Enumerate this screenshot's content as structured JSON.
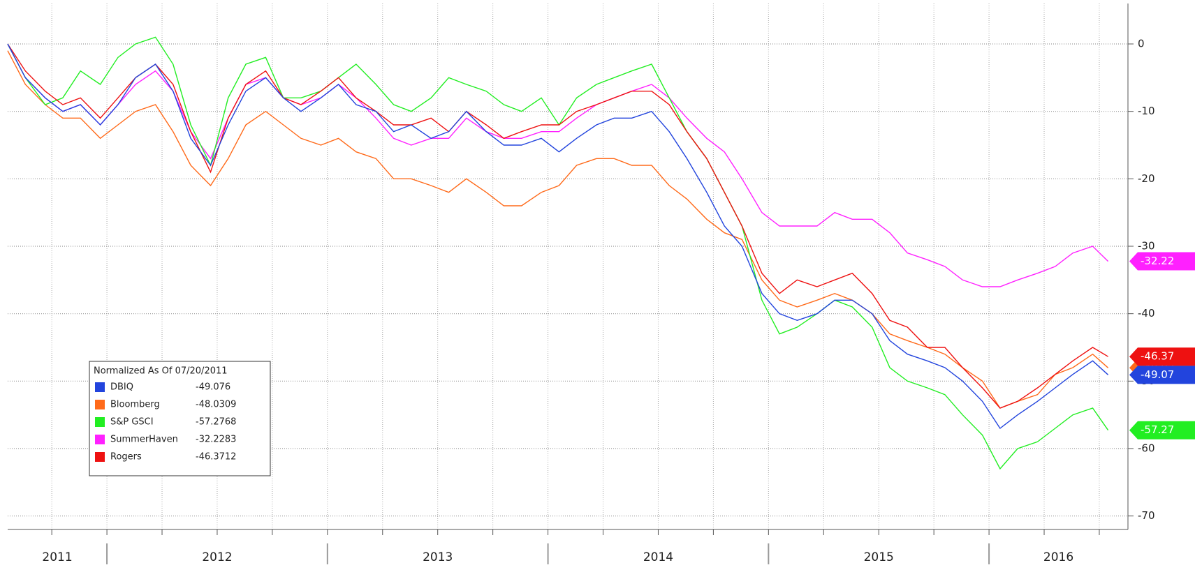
{
  "chart_data": {
    "type": "line",
    "legend_title": "Normalized As Of 07/20/2011",
    "x": [
      2011.55,
      2011.63,
      2011.72,
      2011.8,
      2011.88,
      2011.97,
      2012.05,
      2012.13,
      2012.22,
      2012.3,
      2012.38,
      2012.47,
      2012.55,
      2012.63,
      2012.72,
      2012.8,
      2012.88,
      2012.97,
      2013.05,
      2013.13,
      2013.22,
      2013.3,
      2013.38,
      2013.47,
      2013.55,
      2013.63,
      2013.72,
      2013.8,
      2013.88,
      2013.97,
      2014.05,
      2014.13,
      2014.22,
      2014.3,
      2014.38,
      2014.47,
      2014.55,
      2014.63,
      2014.72,
      2014.8,
      2014.88,
      2014.97,
      2015.05,
      2015.13,
      2015.22,
      2015.3,
      2015.38,
      2015.47,
      2015.55,
      2015.63,
      2015.72,
      2015.8,
      2015.88,
      2015.97,
      2016.05,
      2016.13,
      2016.22,
      2016.3,
      2016.38,
      2016.47,
      2016.54
    ],
    "xlim": [
      2011.55,
      2016.63
    ],
    "xticks": [
      2011.75,
      2012,
      2012.25,
      2012.5,
      2012.75,
      2013,
      2013.25,
      2013.5,
      2013.75,
      2014,
      2014.25,
      2014.5,
      2014.75,
      2015,
      2015.25,
      2015.5,
      2015.75,
      2016,
      2016.25,
      2016.5
    ],
    "year_starts": [
      2011.55,
      2012,
      2013,
      2014,
      2015,
      2016
    ],
    "year_labels": [
      "2011",
      "2012",
      "2013",
      "2014",
      "2015",
      "2016"
    ],
    "ylim": [
      -72,
      6
    ],
    "yticks": [
      0,
      -10,
      -20,
      -30,
      -40,
      -50,
      -60,
      -70
    ],
    "grid": true,
    "series": [
      {
        "name": "Bloomberg",
        "color": "#ff6a1a",
        "legend_value": -48.0309,
        "end_label": "-48.03",
        "values": [
          -1,
          -6,
          -9,
          -11,
          -11,
          -14,
          -12,
          -10,
          -9,
          -13,
          -18,
          -21,
          -17,
          -12,
          -10,
          -12,
          -14,
          -15,
          -14,
          -16,
          -17,
          -20,
          -20,
          -21,
          -22,
          -20,
          -22,
          -24,
          -24,
          -22,
          -21,
          -18,
          -17,
          -17,
          -18,
          -18,
          -21,
          -23,
          -26,
          -28,
          -29,
          -35,
          -38,
          -39,
          -38,
          -37,
          -38,
          -40,
          -43,
          -44,
          -45,
          -46,
          -48,
          -50,
          -54,
          -53,
          -52,
          -49,
          -48,
          -46,
          -48.03
        ]
      },
      {
        "name": "SummerHaven",
        "color": "#ff20ff",
        "legend_value": -32.2283,
        "end_label": "-32.22",
        "values": [
          0,
          -5,
          -8,
          -10,
          -9,
          -12,
          -9,
          -6,
          -4,
          -7,
          -13,
          -17,
          -11,
          -6,
          -5,
          -8,
          -9,
          -8,
          -6,
          -8,
          -11,
          -14,
          -15,
          -14,
          -14,
          -11,
          -13,
          -14,
          -14,
          -13,
          -13,
          -11,
          -9,
          -8,
          -7,
          -6,
          -8,
          -11,
          -14,
          -16,
          -20,
          -25,
          -27,
          -27,
          -27,
          -25,
          -26,
          -26,
          -28,
          -31,
          -32,
          -33,
          -35,
          -36,
          -36,
          -35,
          -34,
          -33,
          -31,
          -30,
          -32.23
        ]
      },
      {
        "name": "S&P GSCI",
        "color": "#22ee22",
        "legend_value": -57.2768,
        "end_label": "-57.27",
        "values": [
          0,
          -5,
          -9,
          -8,
          -4,
          -6,
          -2,
          0,
          1,
          -3,
          -12,
          -18,
          -8,
          -3,
          -2,
          -8,
          -8,
          -7,
          -5,
          -3,
          -6,
          -9,
          -10,
          -8,
          -5,
          -6,
          -7,
          -9,
          -10,
          -8,
          -12,
          -8,
          -6,
          -5,
          -4,
          -3,
          -8,
          -13,
          -17,
          -22,
          -27,
          -38,
          -43,
          -42,
          -40,
          -38,
          -39,
          -42,
          -48,
          -50,
          -51,
          -52,
          -55,
          -58,
          -63,
          -60,
          -59,
          -57,
          -55,
          -54,
          -57.28
        ]
      },
      {
        "name": "Rogers",
        "color": "#ee1111",
        "legend_value": -46.3712,
        "end_label": "-46.37",
        "values": [
          0,
          -4,
          -7,
          -9,
          -8,
          -11,
          -8,
          -5,
          -3,
          -6,
          -13,
          -19,
          -11,
          -6,
          -4,
          -8,
          -9,
          -7,
          -5,
          -8,
          -10,
          -12,
          -12,
          -11,
          -13,
          -10,
          -12,
          -14,
          -13,
          -12,
          -12,
          -10,
          -9,
          -8,
          -7,
          -7,
          -9,
          -13,
          -17,
          -22,
          -27,
          -34,
          -37,
          -35,
          -36,
          -35,
          -34,
          -37,
          -41,
          -42,
          -45,
          -45,
          -48,
          -51,
          -54,
          -53,
          -51,
          -49,
          -47,
          -45,
          -46.37
        ]
      },
      {
        "name": "DBIQ",
        "color": "#2244dd",
        "legend_value": -49.076,
        "end_label": "-49.07",
        "values": [
          0,
          -5,
          -8,
          -10,
          -9,
          -12,
          -9,
          -5,
          -3,
          -7,
          -14,
          -18,
          -12,
          -7,
          -5,
          -8,
          -10,
          -8,
          -6,
          -9,
          -10,
          -13,
          -12,
          -14,
          -13,
          -10,
          -13,
          -15,
          -15,
          -14,
          -16,
          -14,
          -12,
          -11,
          -11,
          -10,
          -13,
          -17,
          -22,
          -27,
          -30,
          -37,
          -40,
          -41,
          -40,
          -38,
          -38,
          -40,
          -44,
          -46,
          -47,
          -48,
          -50,
          -53,
          -57,
          -55,
          -53,
          -51,
          -49,
          -47,
          -49.07
        ]
      }
    ],
    "legend_order": [
      4,
      0,
      2,
      1,
      3
    ]
  }
}
